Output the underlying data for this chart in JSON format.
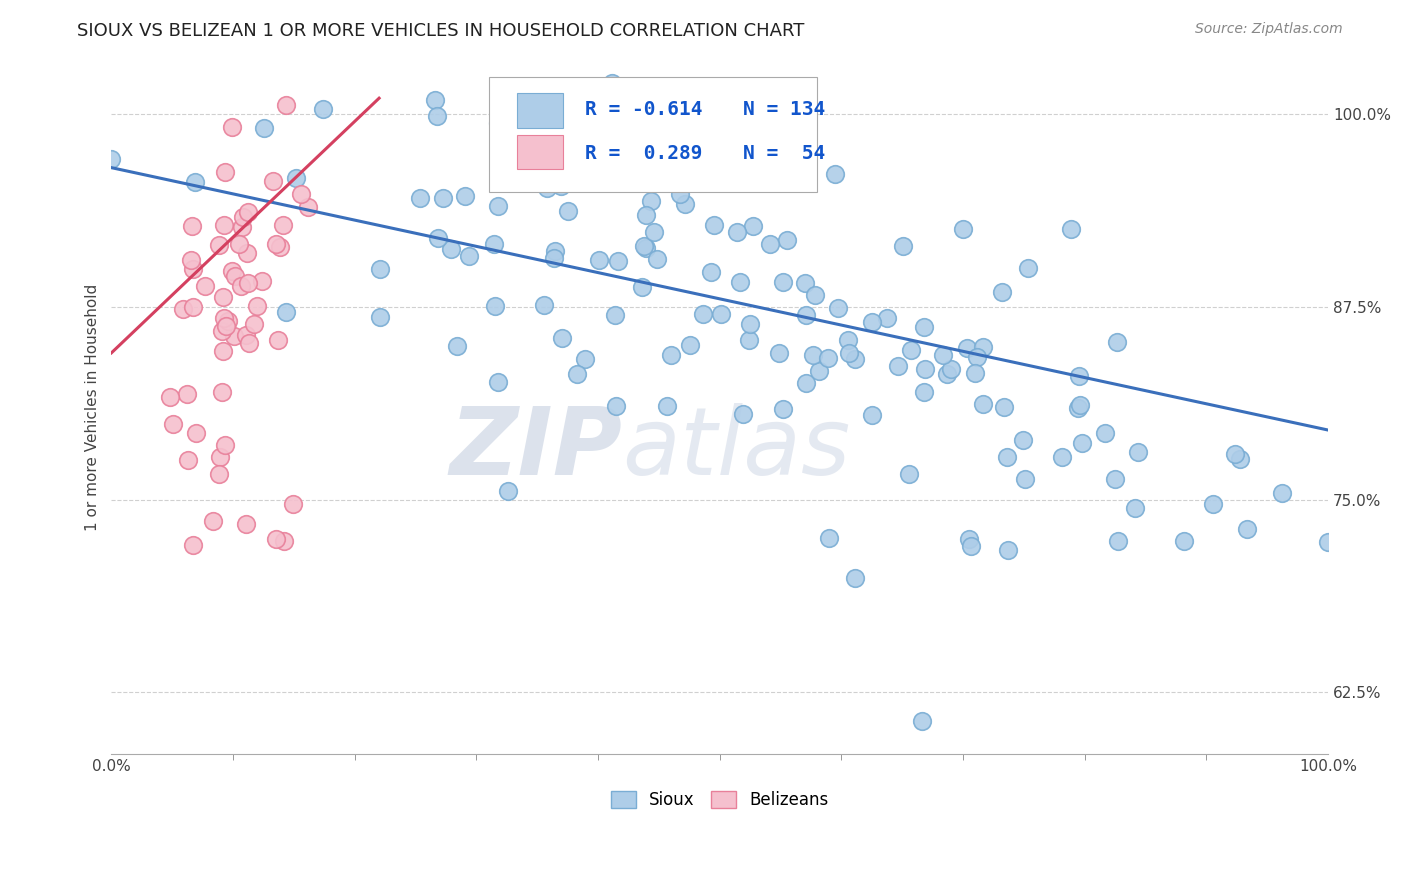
{
  "title": "SIOUX VS BELIZEAN 1 OR MORE VEHICLES IN HOUSEHOLD CORRELATION CHART",
  "source_text": "Source: ZipAtlas.com",
  "ylabel": "1 or more Vehicles in Household",
  "xlim": [
    0.0,
    1.0
  ],
  "ylim": [
    0.585,
    1.035
  ],
  "yticks": [
    0.625,
    0.75,
    0.875,
    1.0
  ],
  "ytick_labels": [
    "62.5%",
    "75.0%",
    "87.5%",
    "100.0%"
  ],
  "legend_r_sioux": "-0.614",
  "legend_n_sioux": "134",
  "legend_r_belizean": "0.289",
  "legend_n_belizean": "54",
  "sioux_color": "#aecde8",
  "sioux_edge_color": "#7aadd4",
  "belizean_color": "#f5c0ce",
  "belizean_edge_color": "#e8809a",
  "trend_sioux_color": "#3a6fbb",
  "trend_belizean_color": "#d44060",
  "trend_sioux_x0": 0.0,
  "trend_sioux_y0": 0.965,
  "trend_sioux_x1": 1.0,
  "trend_sioux_y1": 0.795,
  "trend_belizean_x0": 0.0,
  "trend_belizean_y0": 0.845,
  "trend_belizean_x1": 0.22,
  "trend_belizean_y1": 1.01,
  "watermark_zip": "ZIP",
  "watermark_atlas": "atlas",
  "background_color": "#ffffff",
  "grid_color": "#d0d0d0",
  "title_fontsize": 13,
  "source_fontsize": 10
}
